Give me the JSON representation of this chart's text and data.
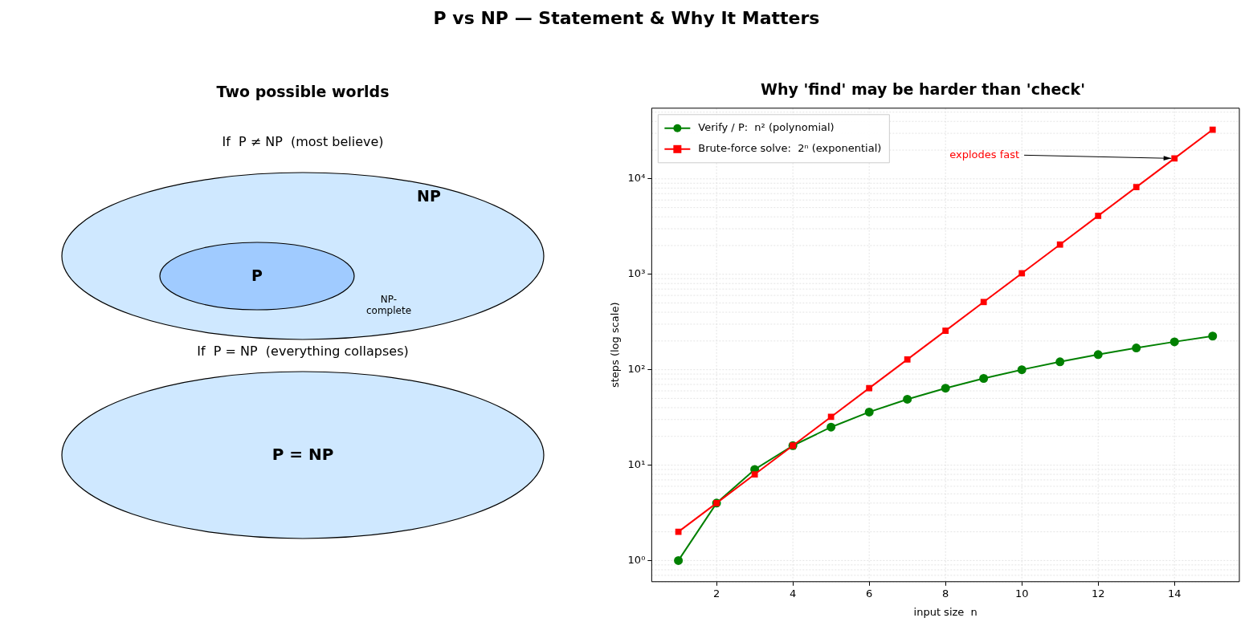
{
  "chart_data": [
    {
      "type": "other",
      "title": "P vs NP — Statement & Why It Matters"
    },
    {
      "type": "other",
      "title": "Two possible worlds",
      "annotations": [
        "If  P ≠ NP  (most believe)",
        "NP",
        "P",
        "NP-\ncomplete",
        "If  P = NP  (everything collapses)",
        "P = NP"
      ]
    },
    {
      "type": "line",
      "title": "Why 'find' may be harder than 'check'",
      "xlabel": "input size  n",
      "ylabel": "steps (log scale)",
      "x": [
        1,
        2,
        3,
        4,
        5,
        6,
        7,
        8,
        9,
        10,
        11,
        12,
        13,
        14,
        15
      ],
      "series": [
        {
          "name": "Verify / P:  n² (polynomial)",
          "color": "#008000",
          "marker": "circle",
          "values": [
            1,
            4,
            9,
            16,
            25,
            36,
            49,
            64,
            81,
            100,
            121,
            144,
            169,
            196,
            225
          ]
        },
        {
          "name": "Brute-force solve:  2ⁿ (exponential)",
          "color": "#ff0000",
          "marker": "square",
          "values": [
            2,
            4,
            8,
            16,
            32,
            64,
            128,
            256,
            512,
            1024,
            2048,
            4096,
            8192,
            16384,
            32768
          ]
        }
      ],
      "log": "y",
      "xlim": [
        0.3,
        15.7
      ],
      "xticks": [
        2,
        4,
        6,
        8,
        10,
        12,
        14
      ],
      "ylim": [
        0.6,
        55000
      ],
      "yticks": [
        {
          "value": 1,
          "label": "10⁰"
        },
        {
          "value": 10,
          "label": "10¹"
        },
        {
          "value": 100,
          "label": "10²"
        },
        {
          "value": 1000,
          "label": "10³"
        },
        {
          "value": 10000,
          "label": "10⁴"
        }
      ],
      "grid": true,
      "legend": "top left",
      "line_style": "solid",
      "annotations": [
        {
          "text": "explodes fast",
          "x": 14,
          "y": 16384
        }
      ]
    }
  ]
}
